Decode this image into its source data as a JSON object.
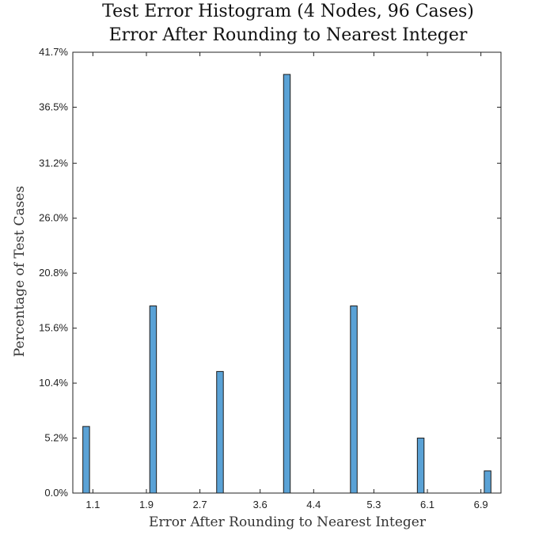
{
  "chart_data": {
    "type": "bar",
    "title": [
      "Test Error Histogram (4 Nodes, 96 Cases)",
      "Error After Rounding to Nearest Integer"
    ],
    "xlabel": "Error After Rounding to Nearest Integer",
    "ylabel": "Percentage of Test Cases",
    "xlim": [
      0.8,
      7.2
    ],
    "ylim": [
      0,
      41.7
    ],
    "x_ticks": [
      "1.1",
      "1.9",
      "2.7",
      "3.6",
      "4.4",
      "5.3",
      "6.1",
      "6.9"
    ],
    "x_tick_values": [
      1.1,
      1.9,
      2.7,
      3.6,
      4.4,
      5.3,
      6.1,
      6.9
    ],
    "y_ticks": [
      "0.0%",
      "5.2%",
      "10.4%",
      "15.6%",
      "20.8%",
      "26.0%",
      "31.2%",
      "36.5%",
      "41.7%"
    ],
    "y_tick_values": [
      0,
      5.2,
      10.4,
      15.6,
      20.8,
      26.0,
      31.2,
      36.5,
      41.7
    ],
    "bar_width": 0.1,
    "bars": [
      {
        "x": 1.0,
        "value": 6.3
      },
      {
        "x": 2.0,
        "value": 17.7
      },
      {
        "x": 3.0,
        "value": 11.5
      },
      {
        "x": 4.0,
        "value": 39.6
      },
      {
        "x": 5.0,
        "value": 17.7
      },
      {
        "x": 6.0,
        "value": 5.2
      },
      {
        "x": 7.0,
        "value": 2.1
      }
    ],
    "color": "#5aa2d6",
    "grid": false
  }
}
